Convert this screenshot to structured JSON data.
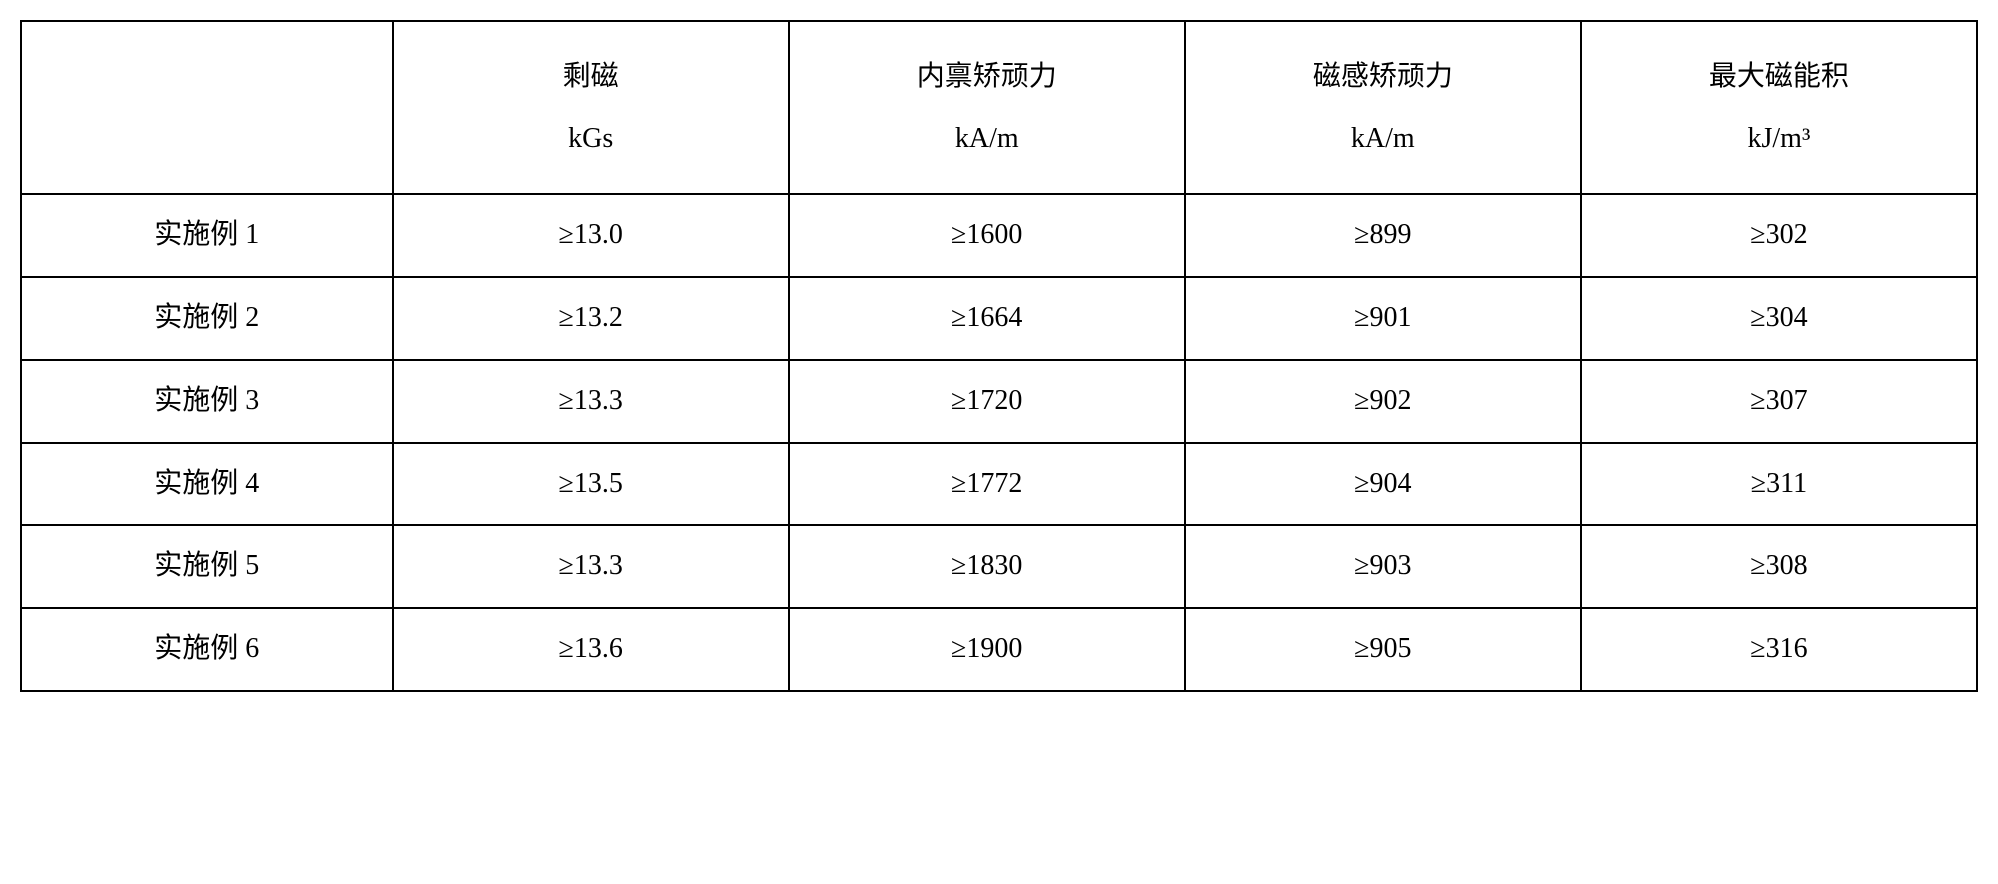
{
  "table": {
    "columns": [
      {
        "line1": "",
        "line2": ""
      },
      {
        "line1": "剩磁",
        "line2": "kGs"
      },
      {
        "line1": "内禀矫顽力",
        "line2": "kA/m"
      },
      {
        "line1": "磁感矫顽力",
        "line2": "kA/m"
      },
      {
        "line1": "最大磁能积",
        "line2": "kJ/m³"
      }
    ],
    "rows": [
      {
        "label": "实施例 1",
        "values": [
          "≥13.0",
          "≥1600",
          "≥899",
          "≥302"
        ]
      },
      {
        "label": "实施例 2",
        "values": [
          "≥13.2",
          "≥1664",
          "≥901",
          "≥304"
        ]
      },
      {
        "label": "实施例 3",
        "values": [
          "≥13.3",
          "≥1720",
          "≥902",
          "≥307"
        ]
      },
      {
        "label": "实施例 4",
        "values": [
          "≥13.5",
          "≥1772",
          "≥904",
          "≥311"
        ]
      },
      {
        "label": "实施例 5",
        "values": [
          "≥13.3",
          "≥1830",
          "≥903",
          "≥308"
        ]
      },
      {
        "label": "实施例 6",
        "values": [
          "≥13.6",
          "≥1900",
          "≥905",
          "≥316"
        ]
      }
    ],
    "styling": {
      "border_color": "#000000",
      "border_width": 2,
      "background_color": "#ffffff",
      "text_color": "#000000",
      "font_size": 28,
      "font_family": "SimSun",
      "header_row_height": 140,
      "data_row_height": 70,
      "text_align": "center"
    }
  }
}
